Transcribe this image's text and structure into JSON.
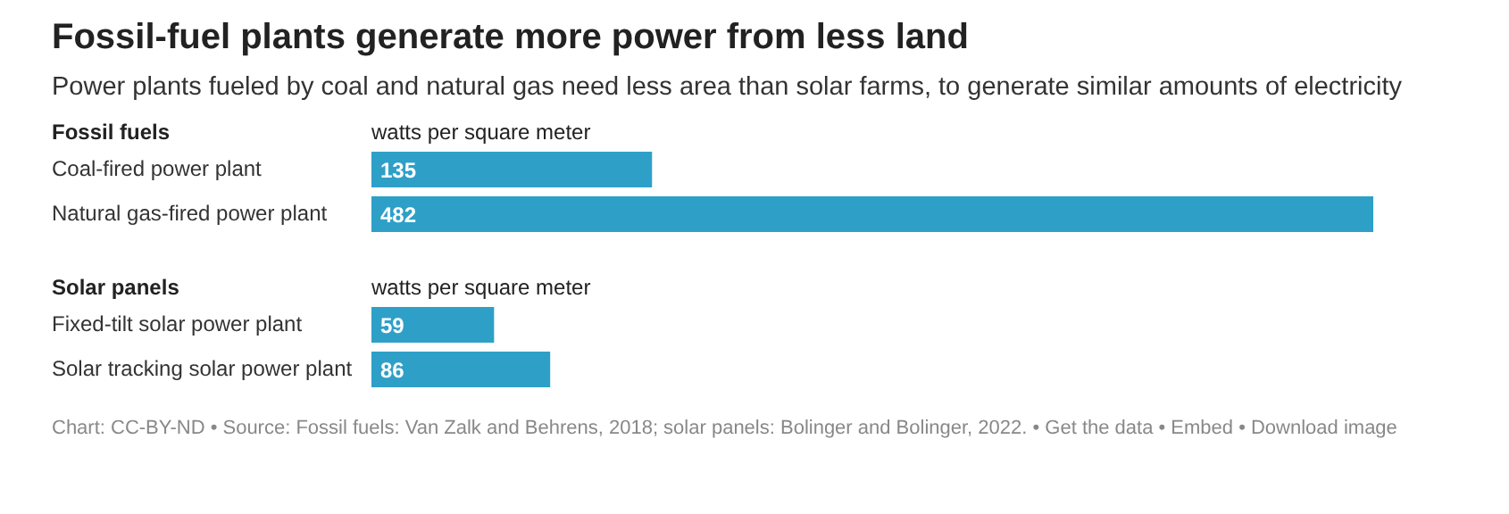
{
  "chart_data": [
    {
      "type": "bar",
      "orientation": "horizontal",
      "title": "Fossil-fuel plants generate more power from less land",
      "subtitle": "Power plants fueled by coal and natural gas need less area than solar farms, to generate similar amounts of electricity",
      "ylabel": "Fossil fuels",
      "xlabel": "watts per square meter",
      "categories": [
        "Coal-fired power plant",
        "Natural gas-fired power plant"
      ],
      "values": [
        135,
        482
      ],
      "color": "#2ea0c8",
      "data_labels": true
    },
    {
      "type": "bar",
      "orientation": "horizontal",
      "ylabel": "Solar panels",
      "xlabel": "watts per square meter",
      "categories": [
        "Fixed-tilt solar power plant",
        "Solar tracking solar power plant"
      ],
      "values": [
        59,
        86
      ],
      "color": "#2ea0c8",
      "data_labels": true,
      "annotations": [
        "Chart: CC-BY-ND • Source: Fossil fuels: Van Zalk and Behrens, 2018; solar panels: Bolinger and Bolinger, 2022. • Get the data • Embed • Download image"
      ]
    }
  ]
}
